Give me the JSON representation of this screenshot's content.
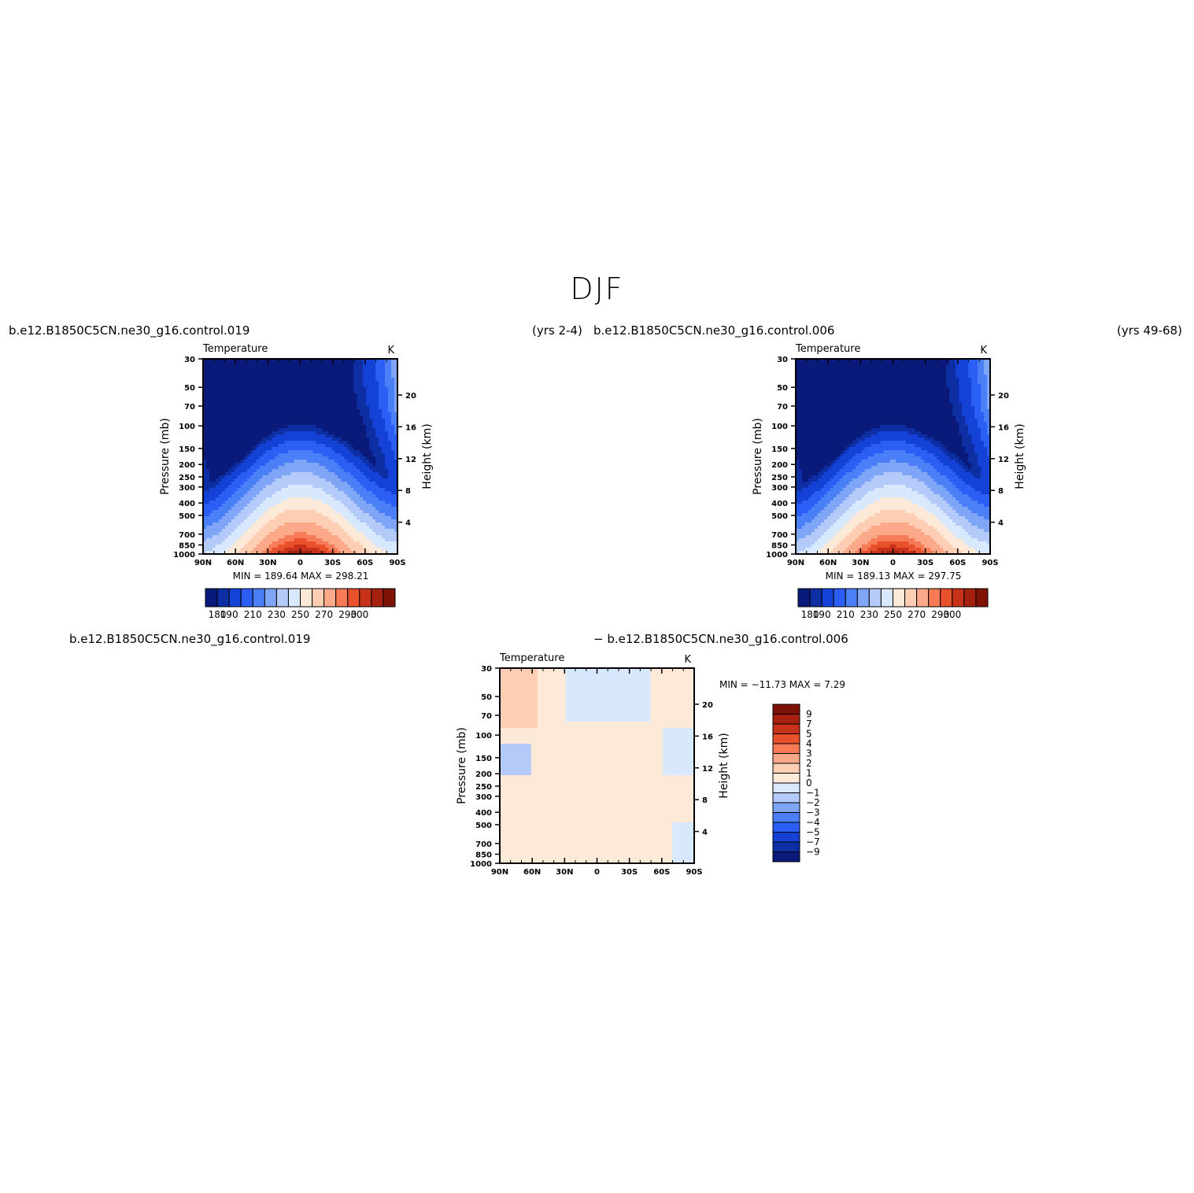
{
  "figure_title": "DJF",
  "panels_text": {
    "p1_left": "b.e12.B1850C5CN.ne30_g16.control.019",
    "p1_right": "(yrs 2-4)",
    "p2_left": "b.e12.B1850C5CN.ne30_g16.control.006",
    "p2_right": "(yrs 49-68)",
    "p3_left": "b.e12.B1850C5CN.ne30_g16.control.019",
    "p3_right": "− b.e12.B1850C5CN.ne30_g16.control.006"
  },
  "colors": {
    "temp_levels": [
      "#0a1a7a",
      "#0d2fa3",
      "#1542d6",
      "#2a5ef5",
      "#4a7ff7",
      "#7fa5f7",
      "#b4cbfa",
      "#d8e8fd",
      "#fde9d8",
      "#fdcdb4",
      "#fca98a",
      "#f77b56",
      "#e9502c",
      "#c9321a",
      "#a5200f",
      "#7d1205"
    ],
    "diff_levels": [
      "#0a1a7a",
      "#0d2fa3",
      "#1542d6",
      "#2a5ef5",
      "#4a7ff7",
      "#7fa5f7",
      "#b4cbfa",
      "#d8e8fd",
      "#fde9d8",
      "#fdcdb4",
      "#fca98a",
      "#f77b56",
      "#e9502c",
      "#c9321a",
      "#a5200f",
      "#7d1205"
    ]
  },
  "chart_data": [
    {
      "type": "heatmap",
      "title": "Temperature",
      "units": "K",
      "xlabel": "",
      "ylabel": "Pressure (mb)",
      "ylabel_right": "Height (km)",
      "x_ticks": [
        "90N",
        "60N",
        "30N",
        "0",
        "30S",
        "60S",
        "90S"
      ],
      "y_ticks": [
        "30",
        "50",
        "70",
        "100",
        "150",
        "200",
        "250",
        "300",
        "400",
        "500",
        "700",
        "850",
        "1000"
      ],
      "y_ticks_right": [
        "20",
        "16",
        "12",
        "8",
        "4"
      ],
      "min_text": "MIN = 189.64",
      "max_text": "MAX = 298.21",
      "colorbar_labels": [
        "180",
        "190",
        "210",
        "230",
        "250",
        "270",
        "290",
        "300"
      ]
    },
    {
      "type": "heatmap",
      "title": "Temperature",
      "units": "K",
      "xlabel": "",
      "ylabel": "Pressure (mb)",
      "ylabel_right": "Height (km)",
      "x_ticks": [
        "90N",
        "60N",
        "30N",
        "0",
        "30S",
        "60S",
        "90S"
      ],
      "y_ticks": [
        "30",
        "50",
        "70",
        "100",
        "150",
        "200",
        "250",
        "300",
        "400",
        "500",
        "700",
        "850",
        "1000"
      ],
      "y_ticks_right": [
        "20",
        "16",
        "12",
        "8",
        "4"
      ],
      "min_text": "MIN = 189.13",
      "max_text": "MAX = 297.75",
      "colorbar_labels": [
        "180",
        "190",
        "210",
        "230",
        "250",
        "270",
        "290",
        "300"
      ]
    },
    {
      "type": "heatmap",
      "title": "Temperature",
      "units": "K",
      "xlabel": "",
      "ylabel": "Pressure (mb)",
      "ylabel_right": "Height (km)",
      "x_ticks": [
        "90N",
        "60N",
        "30N",
        "0",
        "30S",
        "60S",
        "90S"
      ],
      "y_ticks": [
        "30",
        "50",
        "70",
        "100",
        "150",
        "200",
        "250",
        "300",
        "400",
        "500",
        "700",
        "850",
        "1000"
      ],
      "y_ticks_right": [
        "20",
        "16",
        "12",
        "8",
        "4"
      ],
      "min_text": "MIN = −11.73",
      "max_text": "MAX =    7.29",
      "colorbar_labels": [
        "9",
        "7",
        "5",
        "4",
        "3",
        "2",
        "1",
        "0",
        "−1",
        "−2",
        "−3",
        "−4",
        "−5",
        "−7",
        "−9"
      ]
    }
  ]
}
